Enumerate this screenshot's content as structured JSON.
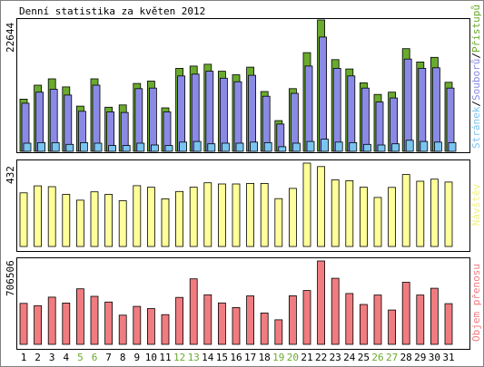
{
  "colors": {
    "background": "#ffffff",
    "panel_border": "#000000",
    "frame": "#808080",
    "pristupy": "#6aaa2e",
    "soubory": "#8a8ae6",
    "stranky": "#7ac4f0",
    "navstevy": "#ffff99",
    "objem": "#f07c80",
    "weekend_label": "#6aaa2e",
    "weekday_label": "#000000"
  },
  "chart_data": [
    {
      "type": "bar",
      "title": "Denní statistika za květen 2012",
      "ymax_label": "22644",
      "ylim": [
        0,
        22644
      ],
      "categories": [
        "1",
        "2",
        "3",
        "4",
        "5",
        "6",
        "7",
        "8",
        "9",
        "10",
        "11",
        "12",
        "13",
        "14",
        "15",
        "16",
        "17",
        "18",
        "19",
        "20",
        "21",
        "22",
        "23",
        "24",
        "25",
        "26",
        "27",
        "28",
        "29",
        "30",
        "31"
      ],
      "weekend_days": [
        "5",
        "6",
        "12",
        "13",
        "19",
        "20",
        "26",
        "27"
      ],
      "legend": [
        "Stránek",
        "Souborů",
        "Přístupů"
      ],
      "series": [
        {
          "name": "Přístupů",
          "values": [
            9000,
            11400,
            12500,
            11100,
            7800,
            12500,
            7600,
            8000,
            11700,
            12100,
            7500,
            14300,
            14700,
            15000,
            13800,
            13200,
            14500,
            10300,
            5300,
            10800,
            17000,
            22644,
            15800,
            14200,
            11800,
            9800,
            10200,
            17700,
            15400,
            16200,
            11900
          ]
        },
        {
          "name": "Souborů",
          "values": [
            8300,
            10200,
            10700,
            9700,
            6900,
            11400,
            6800,
            6700,
            10800,
            10900,
            6800,
            13000,
            13300,
            13800,
            12600,
            12000,
            13100,
            9500,
            4700,
            10000,
            14700,
            19700,
            14300,
            13000,
            10900,
            8500,
            9200,
            15900,
            14300,
            14400,
            10900
          ]
        },
        {
          "name": "Stránek",
          "values": [
            1400,
            1500,
            1500,
            1200,
            1500,
            1400,
            1000,
            1000,
            1400,
            1100,
            1000,
            1600,
            1700,
            1300,
            1400,
            1400,
            1600,
            1500,
            800,
            1400,
            1700,
            2100,
            1600,
            1500,
            1200,
            1100,
            1300,
            1900,
            1700,
            1600,
            1500
          ]
        }
      ]
    },
    {
      "type": "bar",
      "ymax_label": "432",
      "ylim": [
        0,
        432
      ],
      "legend": [
        "Návštěv"
      ],
      "categories": [
        "1",
        "2",
        "3",
        "4",
        "5",
        "6",
        "7",
        "8",
        "9",
        "10",
        "11",
        "12",
        "13",
        "14",
        "15",
        "16",
        "17",
        "18",
        "19",
        "20",
        "21",
        "22",
        "23",
        "24",
        "25",
        "26",
        "27",
        "28",
        "29",
        "30",
        "31"
      ],
      "series": [
        {
          "name": "Návštěv",
          "values": [
            278,
            314,
            310,
            270,
            240,
            283,
            270,
            237,
            315,
            307,
            247,
            285,
            307,
            330,
            324,
            324,
            327,
            327,
            248,
            301,
            432,
            414,
            345,
            341,
            307,
            254,
            306,
            373,
            338,
            349,
            334
          ]
        }
      ]
    },
    {
      "type": "bar",
      "ymax_label": "706506",
      "ylim": [
        0,
        706506
      ],
      "legend": [
        "Objem přenosu"
      ],
      "categories": [
        "1",
        "2",
        "3",
        "4",
        "5",
        "6",
        "7",
        "8",
        "9",
        "10",
        "11",
        "12",
        "13",
        "14",
        "15",
        "16",
        "17",
        "18",
        "19",
        "20",
        "21",
        "22",
        "23",
        "24",
        "25",
        "26",
        "27",
        "28",
        "29",
        "30",
        "31"
      ],
      "series": [
        {
          "name": "Objem přenosu",
          "values": [
            347000,
            328000,
            400000,
            350000,
            471000,
            407000,
            359000,
            247000,
            322000,
            303000,
            252000,
            398000,
            555000,
            420000,
            351000,
            312000,
            411000,
            266000,
            208000,
            412000,
            456000,
            706506,
            560000,
            431000,
            338000,
            418000,
            291000,
            526000,
            418000,
            475000,
            345000
          ]
        }
      ]
    }
  ]
}
